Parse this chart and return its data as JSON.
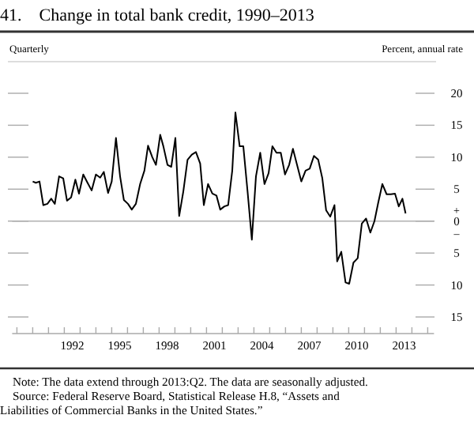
{
  "chart_data": {
    "type": "line",
    "title": "41. Change in total bank credit, 1990–2013",
    "subtitle": "Quarterly",
    "ylabel": "Percent, annual rate",
    "x": [
      1990.0,
      1990.2,
      1990.43,
      1990.67,
      1990.93,
      1991.17,
      1991.4,
      1991.67,
      1991.93,
      1992.17,
      1992.43,
      1992.7,
      1992.93,
      1993.2,
      1993.47,
      1993.73,
      1994.0,
      1994.27,
      1994.5,
      1994.77,
      1995.0,
      1995.27,
      1995.53,
      1995.77,
      1996.03,
      1996.27,
      1996.53,
      1996.8,
      1997.07,
      1997.3,
      1997.57,
      1997.8,
      1998.07,
      1998.27,
      1998.53,
      1998.77,
      1999.03,
      1999.27,
      1999.53,
      1999.8,
      2000.07,
      2000.33,
      2000.6,
      2000.83,
      2001.1,
      2001.37,
      2001.63,
      2001.87,
      2002.13,
      2002.37,
      2002.63,
      2002.83,
      2003.1,
      2003.33,
      2003.6,
      2003.87,
      2004.13,
      2004.4,
      2004.67,
      2004.93,
      2005.17,
      2005.43,
      2005.7,
      2005.97,
      2006.23,
      2006.47,
      2006.73,
      2007.0,
      2007.27,
      2007.53,
      2007.8,
      2008.07,
      2008.33,
      2008.57,
      2008.83,
      2009.1,
      2009.27,
      2009.53,
      2009.8,
      2010.03,
      2010.3,
      2010.57,
      2010.83,
      2011.1,
      2011.37,
      2011.63,
      2011.87,
      2012.13,
      2012.4,
      2012.67,
      2012.93,
      2013.17,
      2013.4,
      2013.6
    ],
    "series": [
      {
        "color": "#000000",
        "values": [
          6.2,
          6,
          6.2,
          2.5,
          2.7,
          3.5,
          2.7,
          7,
          6.7,
          3.2,
          3.7,
          6.5,
          4.3,
          7.3,
          6,
          4.8,
          7.3,
          6.8,
          7.7,
          4.4,
          6.2,
          13,
          7,
          3.3,
          2.7,
          1.8,
          2.7,
          5.8,
          7.9,
          11.8,
          10,
          8.8,
          13.5,
          11.7,
          8.8,
          8.5,
          13,
          0.8,
          4.6,
          9.6,
          10.4,
          10.8,
          9,
          2.5,
          5.8,
          4.3,
          4,
          1.8,
          2.3,
          2.5,
          7.9,
          17,
          11.7,
          11.7,
          4.6,
          -2.9,
          7,
          10.7,
          5.8,
          7.5,
          11.7,
          10.7,
          10.7,
          7.3,
          8.8,
          11.3,
          8.8,
          6.2,
          7.9,
          8.2,
          10.2,
          9.6,
          6.7,
          1.7,
          0.7,
          2.5,
          -6.3,
          -4.8,
          -9.6,
          -9.8,
          -6.5,
          -5.8,
          -0.4,
          0.4,
          -1.8,
          0,
          2.9,
          5.8,
          4.2,
          4.2,
          4.3,
          2.3,
          3.5,
          1.2
        ]
      }
    ],
    "xlim": [
      1988.7,
      2015.4
    ],
    "xticks": [
      {
        "value": 1989,
        "label": null
      },
      {
        "value": 1990,
        "label": null
      },
      {
        "value": 1991,
        "label": null
      },
      {
        "value": 1992,
        "label": null
      },
      {
        "value": 1992.5,
        "label": "1992"
      },
      {
        "value": 1993,
        "label": null
      },
      {
        "value": 1994,
        "label": null
      },
      {
        "value": 1995,
        "label": null
      },
      {
        "value": 1995.5,
        "label": "1995"
      },
      {
        "value": 1996,
        "label": null
      },
      {
        "value": 1997,
        "label": null
      },
      {
        "value": 1998,
        "label": null
      },
      {
        "value": 1998.5,
        "label": "1998"
      },
      {
        "value": 1999,
        "label": null
      },
      {
        "value": 2000,
        "label": null
      },
      {
        "value": 2001,
        "label": null
      },
      {
        "value": 2001.5,
        "label": "2001"
      },
      {
        "value": 2002,
        "label": null
      },
      {
        "value": 2003,
        "label": null
      },
      {
        "value": 2004,
        "label": null
      },
      {
        "value": 2004.5,
        "label": "2004"
      },
      {
        "value": 2005,
        "label": null
      },
      {
        "value": 2006,
        "label": null
      },
      {
        "value": 2007,
        "label": null
      },
      {
        "value": 2007.5,
        "label": "2007"
      },
      {
        "value": 2008,
        "label": null
      },
      {
        "value": 2009,
        "label": null
      },
      {
        "value": 2010,
        "label": null
      },
      {
        "value": 2010.5,
        "label": "2010"
      },
      {
        "value": 2011,
        "label": null
      },
      {
        "value": 2012,
        "label": null
      },
      {
        "value": 2013,
        "label": null
      },
      {
        "value": 2013.5,
        "label": "2013"
      },
      {
        "value": 2014,
        "label": null
      },
      {
        "value": 2015,
        "label": null
      }
    ],
    "ylim": [
      -15,
      20
    ],
    "yticks": [
      20,
      15,
      10,
      5,
      0,
      {
        "value": -5,
        "label": "5"
      },
      {
        "value": -10,
        "label": "10"
      },
      {
        "value": -15,
        "label": "15"
      }
    ],
    "ref_lines": [
      {
        "axis": "y",
        "value": 0,
        "color": "#b0b0b0"
      }
    ],
    "annotations": [
      "+",
      "–",
      "Note: The data extend through 2013:Q2. The data are seasonally adjusted.",
      "Source: Federal Reserve Board, Statistical Release H.8, “Assets and",
      "Liabilities of Commercial Banks in the United States.”"
    ],
    "marker": "none",
    "line_style": "solid"
  }
}
